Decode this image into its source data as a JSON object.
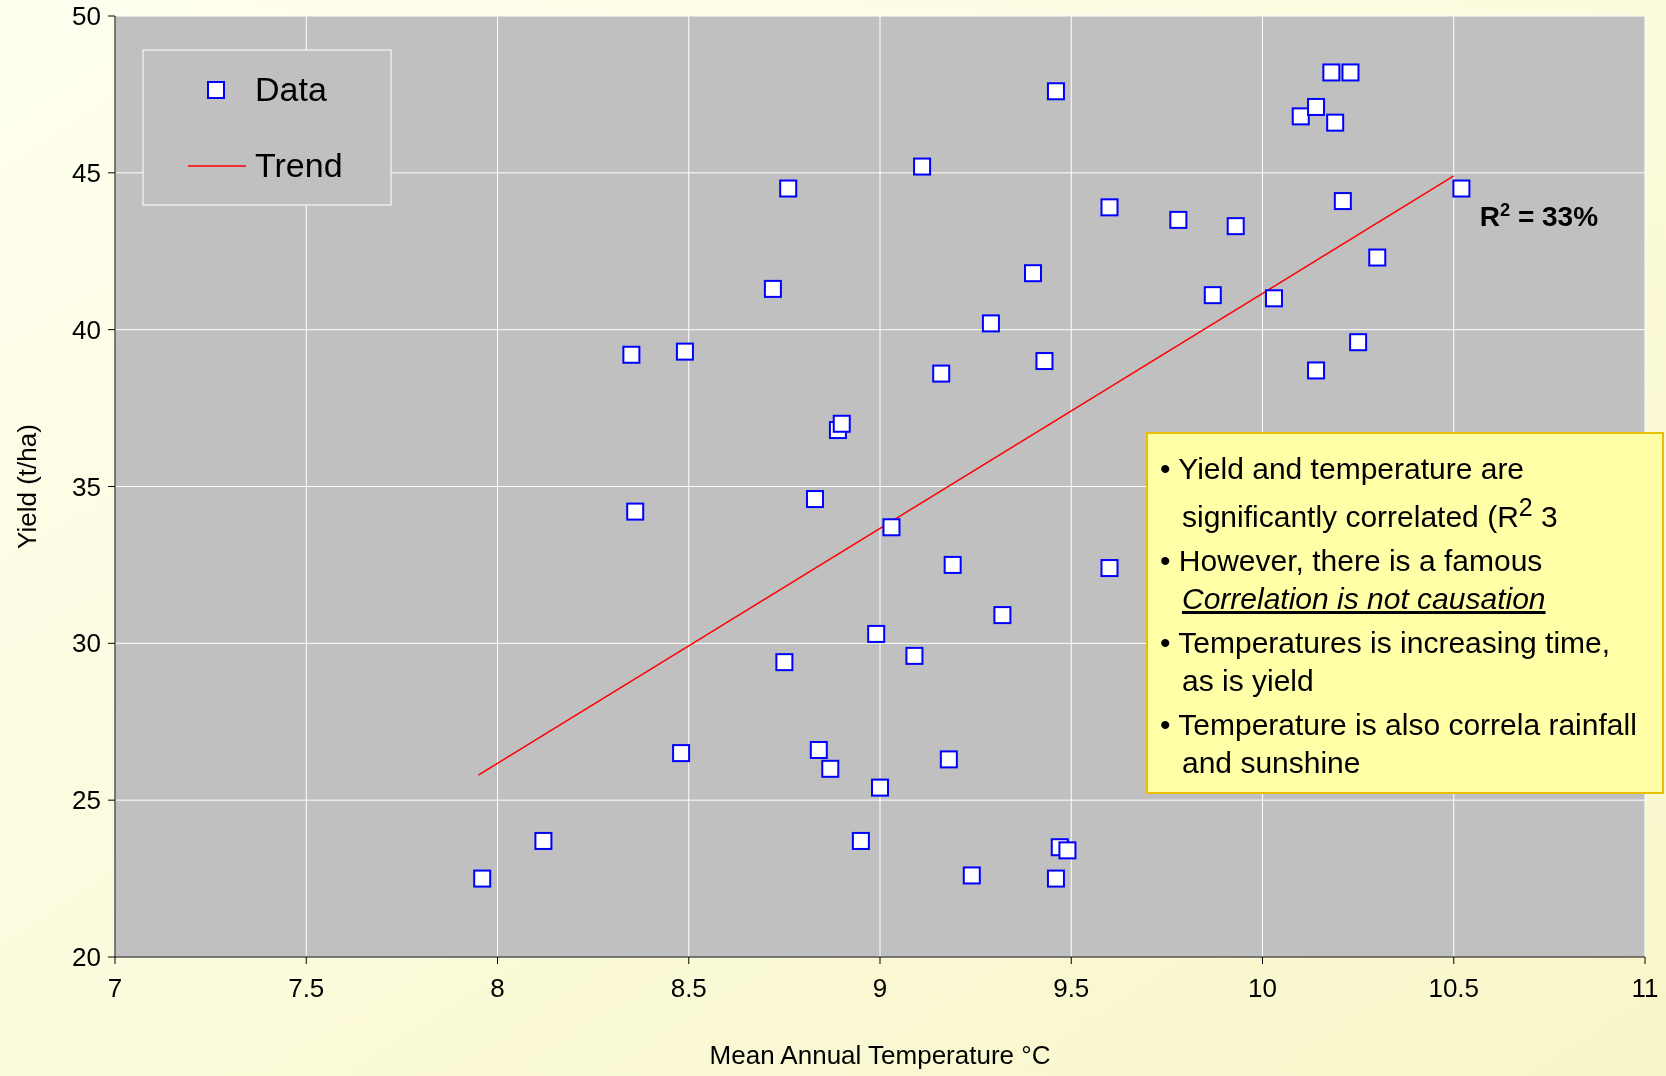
{
  "chart_data": {
    "type": "scatter",
    "xlabel": "Mean Annual Temperature  °C",
    "ylabel": "Yield (t/ha)",
    "xlim": [
      7,
      11
    ],
    "xticks": [
      7,
      7.5,
      8,
      8.5,
      9,
      9.5,
      10,
      10.5,
      11
    ],
    "ylim": [
      20,
      50
    ],
    "yticks": [
      20,
      25,
      30,
      35,
      40,
      45,
      50
    ],
    "grid": true,
    "legend": "top left",
    "series": [
      {
        "name": "Data",
        "color": "#0000ff",
        "marker": "square",
        "x": [
          7.96,
          8.12,
          8.35,
          8.49,
          8.36,
          8.48,
          8.72,
          8.76,
          8.83,
          8.75,
          8.84,
          8.87,
          8.89,
          8.9,
          8.95,
          8.99,
          9.0,
          9.03,
          9.09,
          9.11,
          9.16,
          9.19,
          9.18,
          9.24,
          9.29,
          9.32,
          9.4,
          9.43,
          9.46,
          9.46,
          9.47,
          9.49,
          9.6,
          9.6,
          9.78,
          9.87,
          9.93,
          10.03,
          10.1,
          10.14,
          10.18,
          10.23,
          10.19,
          10.21,
          10.14,
          10.25,
          10.3,
          10.52
        ],
        "values": [
          22.5,
          23.7,
          39.2,
          39.3,
          34.2,
          26.5,
          41.3,
          44.5,
          34.6,
          29.4,
          26.6,
          26.0,
          36.8,
          37.0,
          23.7,
          30.3,
          25.4,
          33.7,
          29.6,
          45.2,
          38.6,
          32.5,
          26.3,
          22.6,
          40.2,
          30.9,
          41.8,
          39.0,
          47.6,
          22.5,
          23.5,
          23.4,
          43.9,
          32.4,
          43.5,
          41.1,
          43.3,
          41.0,
          46.8,
          47.1,
          48.2,
          48.2,
          46.6,
          44.1,
          38.7,
          39.6,
          42.3,
          44.5
        ]
      },
      {
        "name": "Trend",
        "type": "line",
        "color": "#ff0000",
        "x": [
          7.95,
          10.5
        ],
        "values": [
          25.8,
          44.9
        ]
      }
    ],
    "annotations": [
      "R$^{2}$ = 33%",
      "• Yield and temperature are significantly correlated (R$^{2}$ 3",
      "• However, there is a famous",
      "Correlation is not causation",
      "• Temperatures is increasing time, as is yield",
      "• Temperature is also correla rainfall and sunshine"
    ]
  }
}
